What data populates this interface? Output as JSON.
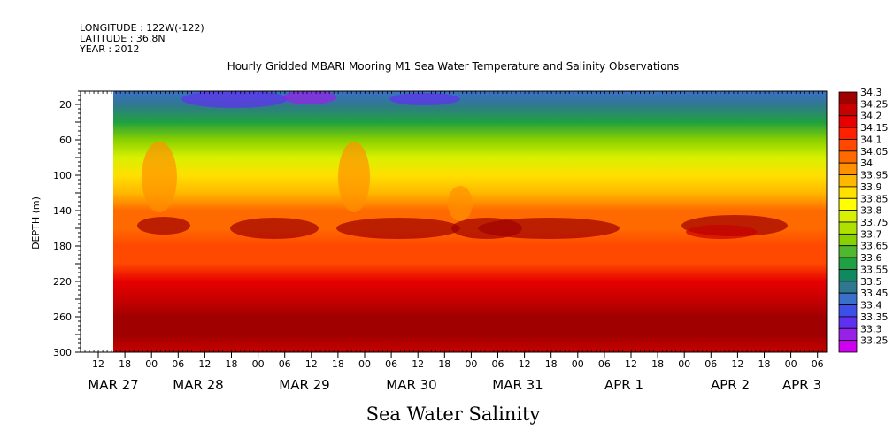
{
  "header": {
    "longitude": "LONGITUDE : 122W(-122)",
    "latitude": "LATITUDE : 36.8N",
    "year": "YEAR : 2012"
  },
  "chart_data": {
    "type": "heatmap",
    "title": "Hourly Gridded MBARI Mooring M1 Sea Water Temperature and Salinity Observations",
    "footer_title": "Sea Water Salinity",
    "ylabel": "DEPTH (m)",
    "y_ticks": [
      20,
      60,
      100,
      140,
      180,
      220,
      260,
      300
    ],
    "ylim": [
      300,
      5
    ],
    "x_hour_ticks": [
      "12",
      "18",
      "00",
      "06",
      "12",
      "18",
      "00",
      "06",
      "12",
      "18",
      "00",
      "06",
      "12",
      "18",
      "00",
      "06",
      "12",
      "18",
      "00",
      "06",
      "12",
      "18",
      "00",
      "06",
      "12",
      "18",
      "00",
      "06",
      "12",
      "18",
      "00",
      "06"
    ],
    "x_day_labels": [
      "MAR 27",
      "MAR 28",
      "MAR 29",
      "MAR 30",
      "MAR 31",
      "APR  1",
      "APR  2",
      "APR  3"
    ],
    "colorbar": {
      "levels": [
        "34.3",
        "34.25",
        "34.2",
        "34.15",
        "34.1",
        "34.05",
        "34",
        "33.95",
        "33.9",
        "33.85",
        "33.8",
        "33.75",
        "33.7",
        "33.65",
        "33.6",
        "33.55",
        "33.5",
        "33.45",
        "33.4",
        "33.35",
        "33.3",
        "33.25"
      ],
      "colors": [
        "#a00000",
        "#c80000",
        "#e60000",
        "#ff2000",
        "#ff4800",
        "#ff6a00",
        "#ff9000",
        "#ffb800",
        "#ffe000",
        "#ffff00",
        "#d8f000",
        "#b0e000",
        "#88d000",
        "#50b830",
        "#20a040",
        "#108860",
        "#307890",
        "#3a70c8",
        "#3c50e8",
        "#6030f0",
        "#9820e8",
        "#d000f0"
      ]
    },
    "depth_profile": {
      "depths": [
        5,
        20,
        40,
        60,
        80,
        100,
        120,
        140,
        160,
        180,
        200,
        220,
        240,
        260,
        280,
        300
      ],
      "salinity": [
        33.42,
        33.48,
        33.55,
        33.65,
        33.75,
        33.85,
        33.93,
        34.0,
        34.03,
        34.05,
        34.08,
        34.15,
        34.22,
        34.28,
        34.25,
        34.2
      ]
    }
  }
}
